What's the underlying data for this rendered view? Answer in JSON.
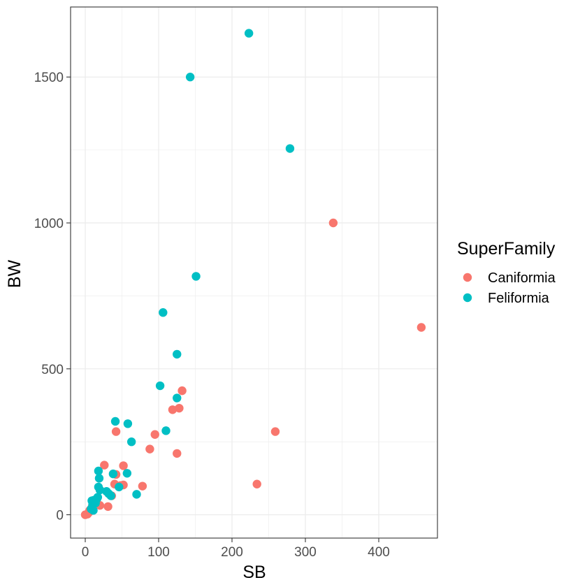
{
  "chart_data": {
    "type": "scatter",
    "xlabel": "SB",
    "ylabel": "BW",
    "xlim": [
      -20,
      480
    ],
    "ylim": [
      -80,
      1740
    ],
    "x_ticks": [
      0,
      100,
      200,
      300,
      400
    ],
    "y_ticks": [
      0,
      500,
      1000,
      1500
    ],
    "x_tick_labels": [
      "0",
      "100",
      "200",
      "300",
      "400"
    ],
    "y_tick_labels": [
      "0",
      "500",
      "1000",
      "1500"
    ],
    "grid": true,
    "legend": {
      "title": "SuperFamily",
      "position": "right"
    },
    "series": [
      {
        "name": "Caniformia",
        "color": "#F8766D",
        "points": [
          [
            0,
            0
          ],
          [
            3,
            2
          ],
          [
            5,
            8
          ],
          [
            6,
            15
          ],
          [
            9,
            25
          ],
          [
            12,
            30
          ],
          [
            20,
            32
          ],
          [
            26,
            170
          ],
          [
            31,
            28
          ],
          [
            36,
            65
          ],
          [
            40,
            105
          ],
          [
            42,
            138
          ],
          [
            42,
            285
          ],
          [
            48,
            100
          ],
          [
            52,
            168
          ],
          [
            52,
            102
          ],
          [
            78,
            98
          ],
          [
            88,
            225
          ],
          [
            95,
            275
          ],
          [
            119,
            360
          ],
          [
            125,
            210
          ],
          [
            128,
            365
          ],
          [
            132,
            425
          ],
          [
            234,
            105
          ],
          [
            259,
            285
          ],
          [
            338,
            1000
          ],
          [
            458,
            642
          ]
        ]
      },
      {
        "name": "Feliformia",
        "color": "#00BFC4",
        "points": [
          [
            8,
            20
          ],
          [
            9,
            48
          ],
          [
            10,
            35
          ],
          [
            11,
            15
          ],
          [
            12,
            50
          ],
          [
            14,
            40
          ],
          [
            16,
            55
          ],
          [
            17,
            60
          ],
          [
            18,
            150
          ],
          [
            18,
            95
          ],
          [
            19,
            125
          ],
          [
            20,
            85
          ],
          [
            29,
            80
          ],
          [
            32,
            72
          ],
          [
            35,
            65
          ],
          [
            38,
            140
          ],
          [
            41,
            320
          ],
          [
            46,
            95
          ],
          [
            57,
            142
          ],
          [
            58,
            312
          ],
          [
            63,
            250
          ],
          [
            70,
            70
          ],
          [
            102,
            442
          ],
          [
            106,
            693
          ],
          [
            110,
            288
          ],
          [
            125,
            550
          ],
          [
            125,
            400
          ],
          [
            151,
            817
          ],
          [
            143,
            1500
          ],
          [
            223,
            1650
          ],
          [
            279,
            1255
          ]
        ]
      }
    ]
  }
}
